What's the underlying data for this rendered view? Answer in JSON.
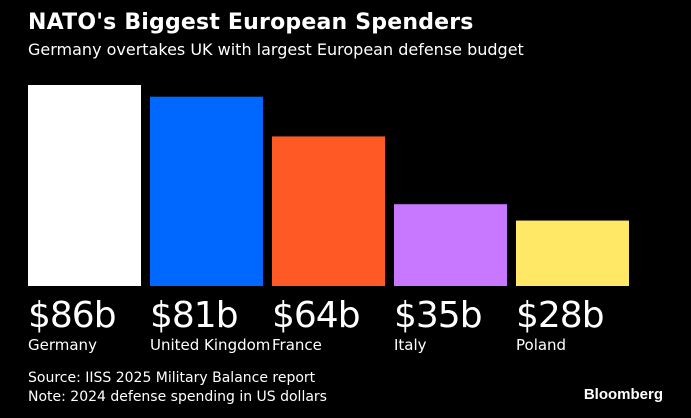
{
  "chart_data": {
    "type": "bar",
    "title": "NATO's Biggest European Spenders",
    "subtitle": "Germany overtakes UK with largest European defense budget",
    "xlabel": "",
    "ylabel": "",
    "unit": "billion USD",
    "ylim": [
      0,
      86
    ],
    "grid": false,
    "categories": [
      "Germany",
      "United Kingdom",
      "France",
      "Italy",
      "Poland"
    ],
    "values": [
      86,
      81,
      64,
      35,
      28
    ],
    "value_labels": [
      "$86b",
      "$81b",
      "$64b",
      "$35b",
      "$28b"
    ],
    "colors": [
      "#ffffff",
      "#0068ff",
      "#ff5a26",
      "#c878ff",
      "#ffe866"
    ]
  },
  "footer": {
    "source": "Source: IISS 2025 Military Balance report",
    "note": "Note: 2024 defense spending in US dollars",
    "brand": "Bloomberg"
  }
}
